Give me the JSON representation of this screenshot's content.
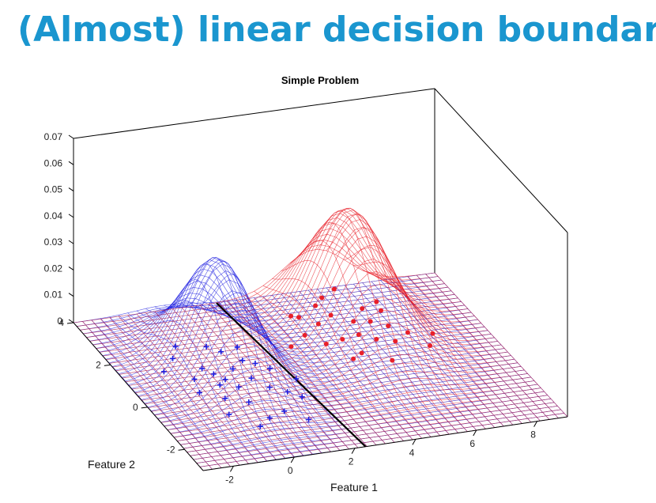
{
  "slide": {
    "title": "(Almost) linear decision boundary"
  },
  "chart_data": {
    "type": "surface",
    "title": "Simple Problem",
    "xlabel": "Feature 1",
    "ylabel": "Feature 2",
    "zlabel": "",
    "xlim": [
      -3,
      9
    ],
    "ylim": [
      -3,
      4
    ],
    "zlim": [
      0,
      0.07
    ],
    "x_ticks": [
      -2,
      0,
      2,
      4,
      6,
      8
    ],
    "y_ticks": [
      -2,
      0,
      2,
      4
    ],
    "z_ticks": [
      0,
      0.01,
      0.02,
      0.03,
      0.04,
      0.05,
      0.06,
      0.07
    ],
    "z_tick_labels": [
      "0",
      "0.01",
      "0.02",
      "0.03",
      "0.04",
      "0.05",
      "0.06",
      "0.07"
    ],
    "series": [
      {
        "color": "#1f1fe0",
        "mean": [
          0,
          1
        ],
        "std": [
          0.95,
          1.2
        ],
        "peak": 0.043
      },
      {
        "color": "#e8202a",
        "mean": [
          5,
          2
        ],
        "std": [
          1.05,
          1.35
        ],
        "peak": 0.0455
      }
    ],
    "points": [
      {
        "color": "#1f1fe0",
        "marker": "+",
        "data": [
          [
            -1.6,
            1.4
          ],
          [
            -1.0,
            1.9
          ],
          [
            -0.6,
            2.4
          ],
          [
            -0.4,
            1.3
          ],
          [
            -0.2,
            1.0
          ],
          [
            0.0,
            0.7
          ],
          [
            0.2,
            0.3
          ],
          [
            0.5,
            1.1
          ],
          [
            0.8,
            0.6
          ],
          [
            1.0,
            1.4
          ],
          [
            1.1,
            0.1
          ],
          [
            1.3,
            1.2
          ],
          [
            1.5,
            -0.2
          ],
          [
            1.6,
            0.9
          ],
          [
            0.1,
            -0.4
          ],
          [
            -0.5,
            -0.1
          ],
          [
            -1.1,
            0.3
          ],
          [
            -0.8,
            -0.8
          ],
          [
            0.3,
            -1.2
          ],
          [
            0.9,
            -1.0
          ],
          [
            1.4,
            -1.5
          ],
          [
            1.8,
            -0.5
          ],
          [
            2.1,
            0.3
          ],
          [
            -0.3,
            0.5
          ],
          [
            0.6,
            1.9
          ],
          [
            1.2,
            2.0
          ],
          [
            0.3,
            2.2
          ],
          [
            -0.9,
            0.9
          ],
          [
            -0.2,
            -1.5
          ]
        ]
      },
      {
        "color": "#e8202a",
        "marker": "o",
        "data": [
          [
            2.8,
            1.7
          ],
          [
            3.5,
            2.1
          ],
          [
            3.8,
            2.9
          ],
          [
            4.2,
            2.5
          ],
          [
            4.6,
            3.3
          ],
          [
            5.0,
            3.6
          ],
          [
            5.3,
            2.4
          ],
          [
            5.6,
            3.9
          ],
          [
            5.9,
            2.9
          ],
          [
            6.2,
            2.0
          ],
          [
            6.4,
            2.7
          ],
          [
            6.6,
            1.6
          ],
          [
            6.0,
            1.3
          ],
          [
            5.5,
            1.5
          ],
          [
            5.1,
            1.8
          ],
          [
            4.7,
            1.0
          ],
          [
            4.3,
            0.8
          ],
          [
            3.9,
            1.6
          ],
          [
            3.6,
            3.0
          ],
          [
            4.8,
            2.8
          ],
          [
            5.8,
            2.3
          ],
          [
            6.9,
            0.9
          ],
          [
            7.3,
            1.4
          ],
          [
            5.4,
            0.5
          ],
          [
            6.5,
            3.1
          ],
          [
            4.5,
            1.7
          ]
        ]
      }
    ]
  }
}
